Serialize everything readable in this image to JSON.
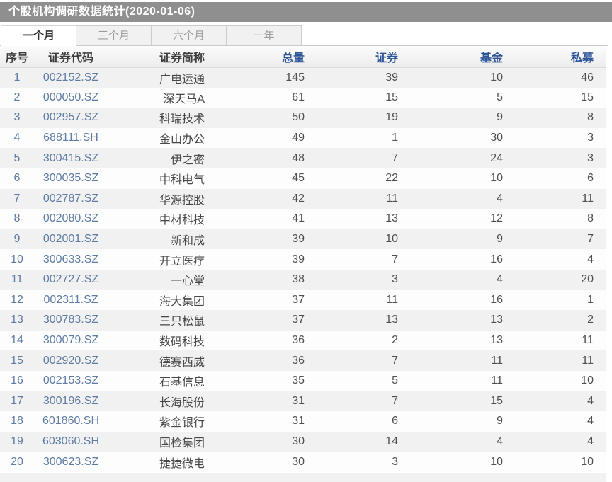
{
  "title": "个股机构调研数据统计(2020-01-06)",
  "tabs": [
    {
      "label": "一个月",
      "active": true
    },
    {
      "label": "三个月",
      "active": false
    },
    {
      "label": "六个月",
      "active": false
    },
    {
      "label": "一年",
      "active": false
    }
  ],
  "table": {
    "columns": [
      {
        "label": "序号",
        "sortable": false
      },
      {
        "label": "证券代码",
        "sortable": false
      },
      {
        "label": "证券简称",
        "sortable": false
      },
      {
        "label": "总量",
        "sortable": true
      },
      {
        "label": "证券",
        "sortable": true
      },
      {
        "label": "基金",
        "sortable": true
      },
      {
        "label": "私募",
        "sortable": true
      }
    ],
    "rows": [
      [
        "1",
        "002152.SZ",
        "广电运通",
        "145",
        "39",
        "10",
        "46"
      ],
      [
        "2",
        "000050.SZ",
        "深天马A",
        "61",
        "15",
        "5",
        "15"
      ],
      [
        "3",
        "002957.SZ",
        "科瑞技术",
        "50",
        "19",
        "9",
        "8"
      ],
      [
        "4",
        "688111.SH",
        "金山办公",
        "49",
        "1",
        "30",
        "3"
      ],
      [
        "5",
        "300415.SZ",
        "伊之密",
        "48",
        "7",
        "24",
        "3"
      ],
      [
        "6",
        "300035.SZ",
        "中科电气",
        "45",
        "22",
        "10",
        "6"
      ],
      [
        "7",
        "002787.SZ",
        "华源控股",
        "42",
        "11",
        "4",
        "11"
      ],
      [
        "8",
        "002080.SZ",
        "中材科技",
        "41",
        "13",
        "12",
        "8"
      ],
      [
        "9",
        "002001.SZ",
        "新和成",
        "39",
        "10",
        "9",
        "7"
      ],
      [
        "10",
        "300633.SZ",
        "开立医疗",
        "39",
        "7",
        "16",
        "4"
      ],
      [
        "11",
        "002727.SZ",
        "一心堂",
        "38",
        "3",
        "4",
        "20"
      ],
      [
        "12",
        "002311.SZ",
        "海大集团",
        "37",
        "11",
        "16",
        "1"
      ],
      [
        "13",
        "300783.SZ",
        "三只松鼠",
        "37",
        "13",
        "13",
        "2"
      ],
      [
        "14",
        "300079.SZ",
        "数码科技",
        "36",
        "2",
        "13",
        "11"
      ],
      [
        "15",
        "002920.SZ",
        "德赛西威",
        "36",
        "7",
        "11",
        "11"
      ],
      [
        "16",
        "002153.SZ",
        "石基信息",
        "35",
        "5",
        "11",
        "10"
      ],
      [
        "17",
        "300196.SZ",
        "长海股份",
        "31",
        "7",
        "15",
        "4"
      ],
      [
        "18",
        "601860.SH",
        "紫金银行",
        "31",
        "6",
        "9",
        "4"
      ],
      [
        "19",
        "603060.SH",
        "国检集团",
        "30",
        "14",
        "4",
        "4"
      ],
      [
        "20",
        "300623.SZ",
        "捷捷微电",
        "30",
        "3",
        "10",
        "10"
      ]
    ]
  },
  "colors": {
    "titlebar_bg": "#8f8f8f",
    "header_accent": "#2d5598",
    "code_text": "#5d7ba3",
    "odd_row_bg": "#f1f1f1"
  }
}
